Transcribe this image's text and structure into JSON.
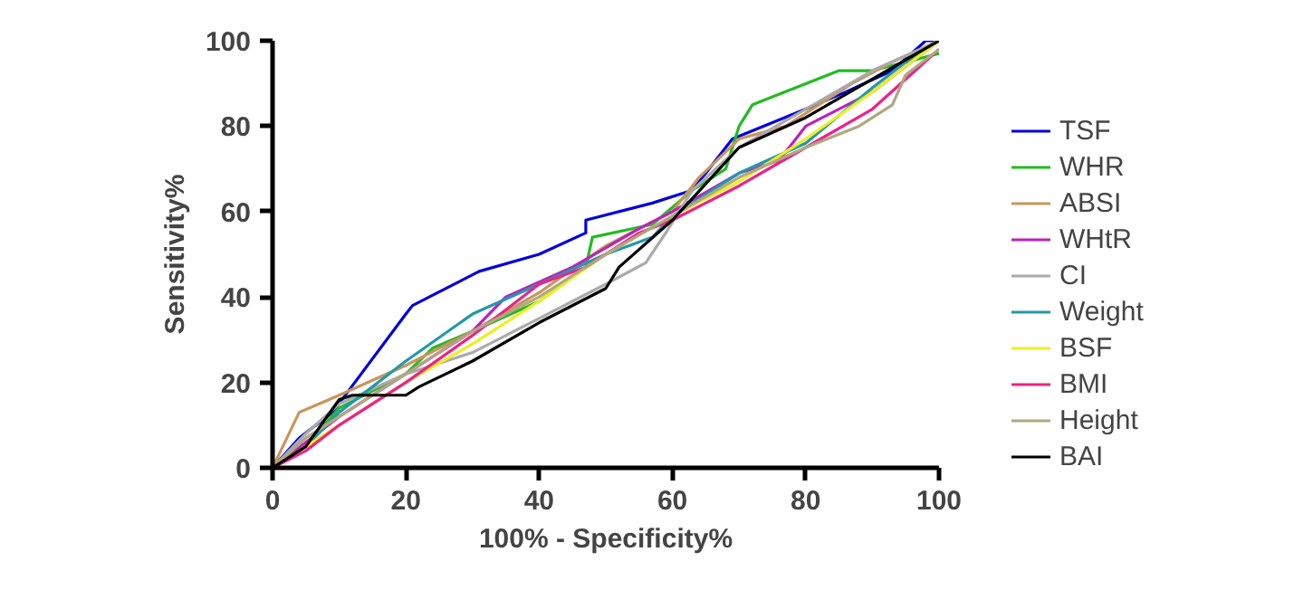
{
  "chart_data": {
    "type": "line",
    "xlabel": "100% - Specificity%",
    "ylabel": "Sensitivity%",
    "xlim": [
      0,
      100
    ],
    "ylim": [
      0,
      100
    ],
    "xticks": [
      0,
      20,
      40,
      60,
      80,
      100
    ],
    "yticks": [
      0,
      20,
      40,
      60,
      80,
      100
    ],
    "grid": false,
    "legend": "right",
    "marker": "none",
    "line_style": "solid",
    "series": [
      {
        "name": "TSF",
        "color": "#0000dd",
        "x": [
          0,
          4,
          9,
          20,
          21,
          31,
          40,
          47,
          47,
          57,
          63,
          69,
          80,
          86,
          93,
          98,
          100
        ],
        "values": [
          0,
          7,
          13,
          36,
          38,
          46,
          50,
          55,
          58,
          62,
          65,
          77,
          84,
          88,
          93,
          100,
          100
        ]
      },
      {
        "name": "WHR",
        "color": "#22bb22",
        "x": [
          0,
          5,
          10,
          20,
          24,
          30,
          40,
          47,
          48,
          57,
          63,
          68,
          70,
          72,
          85,
          90,
          100
        ],
        "values": [
          0,
          5,
          14,
          22,
          28,
          32,
          39,
          47,
          54,
          57,
          65,
          70,
          80,
          85,
          93,
          93,
          97
        ]
      },
      {
        "name": "ABSI",
        "color": "#c8965a",
        "x": [
          0,
          4,
          7,
          10,
          20,
          30,
          40,
          50,
          60,
          64,
          70,
          77,
          87,
          93,
          100
        ],
        "values": [
          0,
          13,
          15,
          17,
          24,
          32,
          41,
          52,
          60,
          68,
          77,
          80,
          90,
          95,
          100
        ]
      },
      {
        "name": "WHtR",
        "color": "#bb22bb",
        "x": [
          0,
          5,
          10,
          20,
          30,
          35,
          45,
          55,
          60,
          70,
          76,
          80,
          90,
          100
        ],
        "values": [
          0,
          6,
          12,
          22,
          32,
          40,
          47,
          56,
          60,
          69,
          72,
          80,
          88,
          100
        ]
      },
      {
        "name": "CI",
        "color": "#aaaaaa",
        "x": [
          0,
          5,
          10,
          20,
          30,
          40,
          50,
          56,
          59,
          63,
          70,
          80,
          90,
          100
        ],
        "values": [
          0,
          8,
          15,
          22,
          27,
          35,
          43,
          48,
          55,
          65,
          75,
          84,
          93,
          100
        ]
      },
      {
        "name": "Weight",
        "color": "#2299aa",
        "x": [
          0,
          5,
          10,
          20,
          30,
          40,
          50,
          57,
          60,
          70,
          80,
          90,
          95,
          100
        ],
        "values": [
          0,
          5,
          13,
          25,
          36,
          43,
          50,
          54,
          59,
          69,
          76,
          89,
          95,
          100
        ]
      },
      {
        "name": "BSF",
        "color": "#eeee22",
        "x": [
          0,
          5,
          10,
          20,
          30,
          40,
          50,
          60,
          70,
          80,
          90,
          100
        ],
        "values": [
          0,
          5,
          10,
          20,
          29,
          39,
          50,
          59,
          67,
          77,
          88,
          100
        ]
      },
      {
        "name": "BMI",
        "color": "#ee2288",
        "x": [
          0,
          5,
          10,
          20,
          30,
          40,
          47,
          55,
          60,
          70,
          80,
          90,
          100
        ],
        "values": [
          0,
          4,
          10,
          20,
          31,
          43,
          47,
          55,
          58,
          66,
          75,
          84,
          98
        ]
      },
      {
        "name": "Height",
        "color": "#b0a880",
        "x": [
          0,
          5,
          10,
          20,
          30,
          40,
          50,
          60,
          70,
          80,
          88,
          93,
          95,
          100
        ],
        "values": [
          0,
          7,
          12,
          22,
          32,
          40,
          50,
          59,
          68,
          75,
          80,
          85,
          92,
          98
        ]
      },
      {
        "name": "BAI",
        "color": "#000000",
        "x": [
          0,
          5,
          10,
          12,
          20,
          22,
          30,
          40,
          50,
          52,
          60,
          70,
          80,
          90,
          100
        ],
        "values": [
          0,
          5,
          16,
          17,
          17,
          19,
          25,
          34,
          42,
          47,
          58,
          75,
          82,
          91,
          100
        ]
      }
    ]
  }
}
